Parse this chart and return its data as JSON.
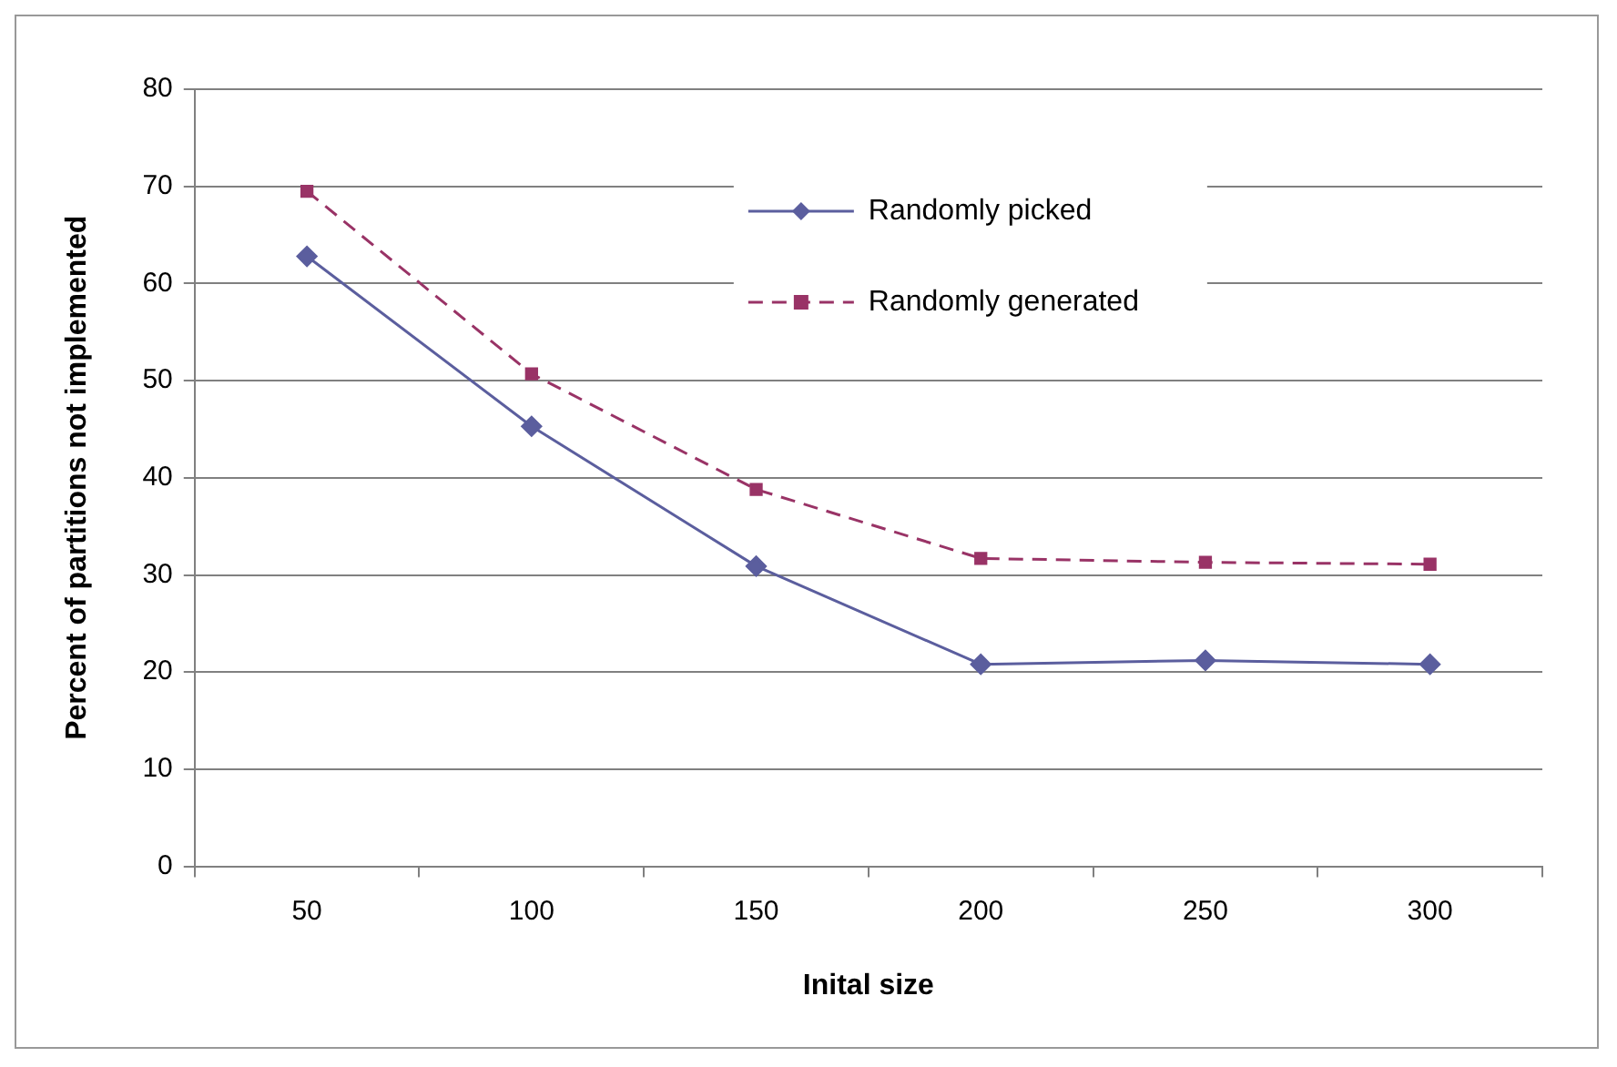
{
  "chart_data": {
    "type": "line",
    "xlabel": "Inital size",
    "ylabel": "Percent of partitions not implemented",
    "categories": [
      "50",
      "100",
      "150",
      "200",
      "250",
      "300"
    ],
    "series": [
      {
        "name": "Randomly picked",
        "color": "#5b5e9e",
        "marker": "diamond",
        "line_style": "solid",
        "values": [
          62.8,
          45.3,
          30.9,
          20.8,
          21.2,
          20.8
        ]
      },
      {
        "name": "Randomly generated",
        "color": "#993366",
        "marker": "square",
        "line_style": "dashed",
        "values": [
          69.5,
          50.7,
          38.8,
          31.7,
          31.3,
          31.1
        ]
      }
    ],
    "ylim": [
      0,
      80
    ],
    "yticks": [
      0,
      10,
      20,
      30,
      40,
      50,
      60,
      70,
      80
    ],
    "grid": "y",
    "legend": "top right"
  }
}
